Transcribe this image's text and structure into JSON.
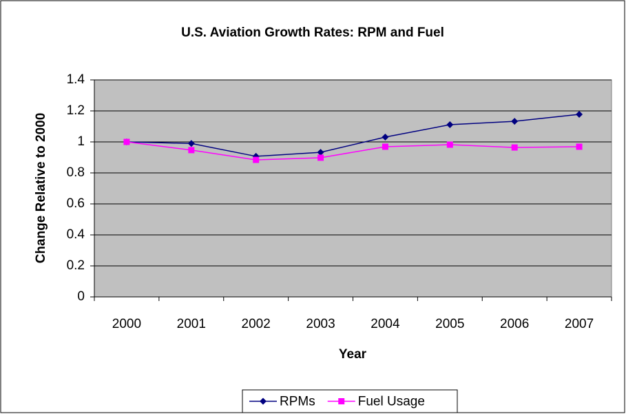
{
  "chart_data": {
    "type": "line",
    "title": "U.S. Aviation Growth Rates: RPM and Fuel",
    "x_label": "Year",
    "y_label": "Change Relative to 2000",
    "categories": [
      "2000",
      "2001",
      "2002",
      "2003",
      "2004",
      "2005",
      "2006",
      "2007"
    ],
    "series": [
      {
        "name": "RPMs",
        "color": "#000080",
        "marker": "diamond",
        "values": [
          1.0,
          0.99,
          0.907,
          0.933,
          1.031,
          1.111,
          1.133,
          1.178
        ]
      },
      {
        "name": "Fuel Usage",
        "color": "#ff00ff",
        "marker": "square",
        "values": [
          1.0,
          0.947,
          0.884,
          0.898,
          0.969,
          0.982,
          0.964,
          0.969
        ]
      }
    ],
    "ylim": [
      0,
      1.4
    ],
    "yticks": [
      0,
      0.2,
      0.4,
      0.6,
      0.8,
      1,
      1.2,
      1.4
    ],
    "grid": true,
    "legend": "bottom"
  }
}
